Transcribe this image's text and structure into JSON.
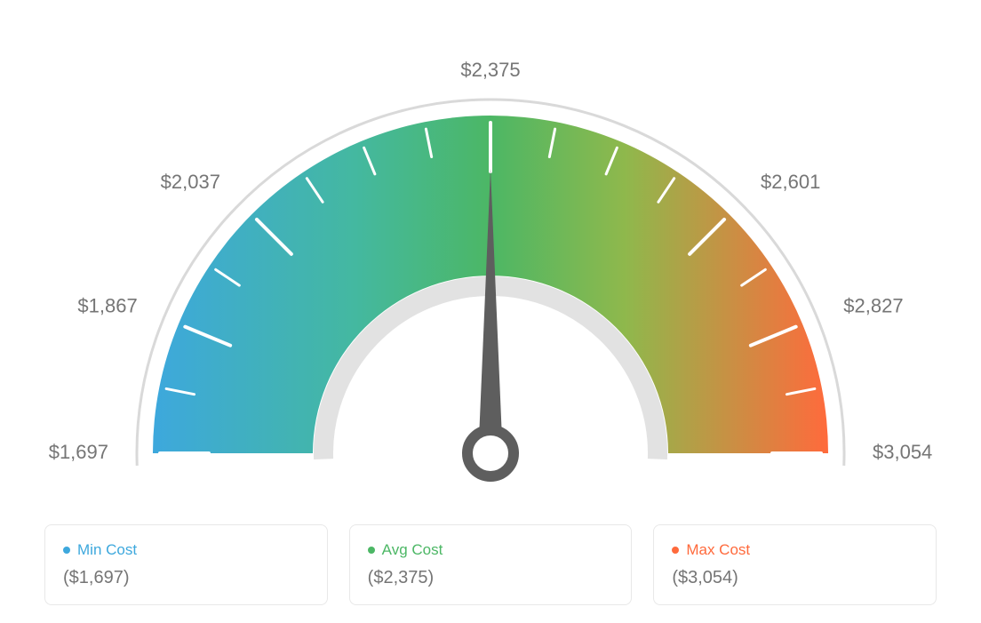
{
  "gauge": {
    "type": "gauge",
    "min_value": 1697,
    "avg_value": 2375,
    "max_value": 3054,
    "needle_angle": 0,
    "tick_labels": [
      "$1,697",
      "$1,867",
      "$2,037",
      "$2,375",
      "$2,601",
      "$2,827",
      "$3,054"
    ],
    "tick_label_angles": [
      -90,
      -67.5,
      -45,
      0,
      45,
      67.5,
      90
    ],
    "tick_angles_minor": [
      -90,
      -78.75,
      -67.5,
      -56.25,
      -45,
      -33.75,
      -22.5,
      -11.25,
      0,
      11.25,
      22.5,
      33.75,
      45,
      56.25,
      67.5,
      78.75,
      90
    ],
    "tick_angles_major": [
      -90,
      -67.5,
      -45,
      0,
      45,
      67.5,
      90
    ],
    "outer_radius": 380,
    "inner_radius": 200,
    "label_radius": 430,
    "colors": {
      "gradient_min": "#3da8dd",
      "gradient_mid": "#4cb765",
      "gradient_max": "#ff6a3c",
      "outer_ring": "#d9d9d9",
      "inner_ring": "#e2e2e2",
      "needle": "#5e5e5e",
      "tick_color": "#ffffff",
      "label_color": "#757575",
      "label_fontsize": 22
    },
    "background_color": "#ffffff"
  },
  "cards": {
    "min": {
      "label": "Min Cost",
      "value": "($1,697)",
      "color": "#3da8dd"
    },
    "avg": {
      "label": "Avg Cost",
      "value": "($2,375)",
      "color": "#4cb765"
    },
    "max": {
      "label": "Max Cost",
      "value": "($3,054)",
      "color": "#ff6a3c"
    }
  },
  "layout": {
    "card_border_color": "#e8e8e8",
    "card_border_radius": 8,
    "value_text_color": "#757575"
  }
}
